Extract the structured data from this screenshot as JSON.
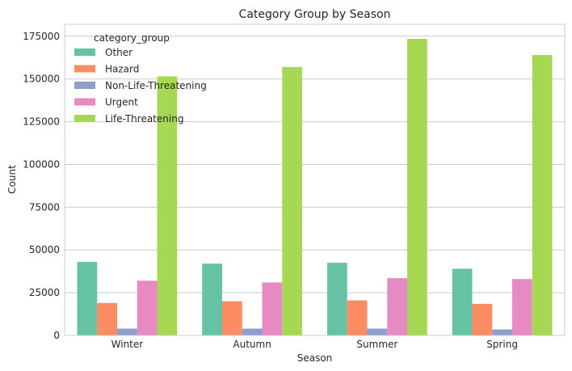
{
  "chart_data": {
    "type": "bar",
    "title": "Category Group by Season",
    "xlabel": "Season",
    "ylabel": "Count",
    "categories": [
      "Winter",
      "Autumn",
      "Summer",
      "Spring"
    ],
    "ylim": [
      0,
      182000
    ],
    "yticks": [
      0,
      25000,
      50000,
      75000,
      100000,
      125000,
      150000,
      175000
    ],
    "grid": true,
    "legend": {
      "title": "category_group",
      "placement": "top-left"
    },
    "series": [
      {
        "name": "Other",
        "color": "#66c2a5",
        "values": [
          43000,
          42000,
          42500,
          39000
        ]
      },
      {
        "name": "Hazard",
        "color": "#fc8d62",
        "values": [
          19000,
          20000,
          20500,
          18500
        ]
      },
      {
        "name": "Non-Life-Threatening",
        "color": "#8da0cb",
        "values": [
          4000,
          4000,
          4000,
          3500
        ]
      },
      {
        "name": "Urgent",
        "color": "#e78ac3",
        "values": [
          32000,
          31000,
          33500,
          33000
        ]
      },
      {
        "name": "Life-Threatening",
        "color": "#a6d854",
        "values": [
          151500,
          157000,
          173500,
          164000
        ]
      }
    ]
  }
}
